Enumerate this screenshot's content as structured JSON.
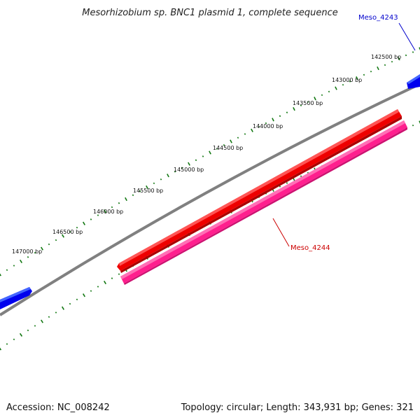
{
  "title": "Mesorhizobium sp. BNC1 plasmid 1, complete sequence",
  "footer": {
    "accession": "Accession: NC_008242",
    "summary": "Topology: circular; Length: 343,931 bp; Genes: 321"
  },
  "ticks": [
    {
      "label": "142500 bp"
    },
    {
      "label": "143000 bp"
    },
    {
      "label": "143500 bp"
    },
    {
      "label": "144000 bp"
    },
    {
      "label": "144500 bp"
    },
    {
      "label": "145000 bp"
    },
    {
      "label": "145500 bp"
    },
    {
      "label": "146000 bp"
    },
    {
      "label": "146500 bp"
    },
    {
      "label": "147000 bp"
    }
  ],
  "genes": [
    {
      "label": "Meso_4243",
      "color": "#0000cc"
    },
    {
      "label": "Meso_4244",
      "color": "#cc0000"
    }
  ],
  "colors": {
    "backbone": "#808080",
    "tick": "#117711",
    "forward_gene": "#0000ff",
    "cds_red": "#ff0000",
    "cds_pink": "#ff1f8e"
  }
}
